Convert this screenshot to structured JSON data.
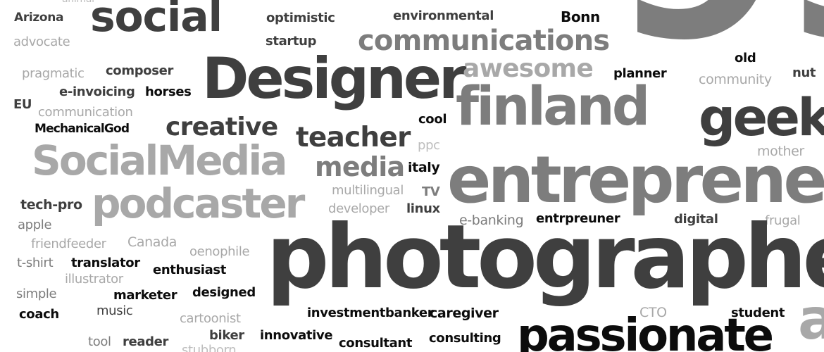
{
  "colors": {
    "black": "#0c0c0c",
    "dark": "#3f3f3f",
    "mid": "#7d7d7d",
    "light": "#a8a8a8",
    "faint": "#bdbdbd"
  },
  "words": [
    {
      "text": "animal",
      "tone": "faint"
    },
    {
      "text": "Arizona",
      "tone": "dark"
    },
    {
      "text": "advocate",
      "tone": "light"
    },
    {
      "text": "social",
      "tone": "dark"
    },
    {
      "text": "optimistic",
      "tone": "dark"
    },
    {
      "text": "startup",
      "tone": "dark"
    },
    {
      "text": "environmental",
      "tone": "dark"
    },
    {
      "text": "communications",
      "tone": "mid"
    },
    {
      "text": "Bonn",
      "tone": "black"
    },
    {
      "text": "old",
      "tone": "black"
    },
    {
      "text": "pragmatic",
      "tone": "light"
    },
    {
      "text": "composer",
      "tone": "dark"
    },
    {
      "text": "Designer",
      "tone": "dark"
    },
    {
      "text": "awesome",
      "tone": "light"
    },
    {
      "text": "planner",
      "tone": "black"
    },
    {
      "text": "community",
      "tone": "light"
    },
    {
      "text": "nut",
      "tone": "dark"
    },
    {
      "text": "e-invoicing",
      "tone": "dark"
    },
    {
      "text": "horses",
      "tone": "black"
    },
    {
      "text": "EU",
      "tone": "dark"
    },
    {
      "text": "communication",
      "tone": "light"
    },
    {
      "text": "finland",
      "tone": "mid"
    },
    {
      "text": "geek",
      "tone": "dark"
    },
    {
      "text": "cool",
      "tone": "black"
    },
    {
      "text": "MechanicalGod",
      "tone": "black"
    },
    {
      "text": "creative",
      "tone": "dark"
    },
    {
      "text": "teacher",
      "tone": "dark"
    },
    {
      "text": "ppc",
      "tone": "faint"
    },
    {
      "text": "mother",
      "tone": "light"
    },
    {
      "text": "SocialMedia",
      "tone": "light"
    },
    {
      "text": "media",
      "tone": "mid"
    },
    {
      "text": "italy",
      "tone": "black"
    },
    {
      "text": "entrepreneur",
      "tone": "mid"
    },
    {
      "text": "multilingual",
      "tone": "light"
    },
    {
      "text": "TV",
      "tone": "mid"
    },
    {
      "text": "tech-pro",
      "tone": "dark"
    },
    {
      "text": "podcaster",
      "tone": "light"
    },
    {
      "text": "developer",
      "tone": "light"
    },
    {
      "text": "linux",
      "tone": "dark"
    },
    {
      "text": "apple",
      "tone": "mid"
    },
    {
      "text": "e-banking",
      "tone": "mid"
    },
    {
      "text": "entrpreuner",
      "tone": "black"
    },
    {
      "text": "digital",
      "tone": "dark"
    },
    {
      "text": "frugal",
      "tone": "light"
    },
    {
      "text": "friendfeeder",
      "tone": "light"
    },
    {
      "text": "Canada",
      "tone": "light"
    },
    {
      "text": "oenophile",
      "tone": "light"
    },
    {
      "text": "photographer",
      "tone": "dark"
    },
    {
      "text": "t-shirt",
      "tone": "mid"
    },
    {
      "text": "translator",
      "tone": "black"
    },
    {
      "text": "illustrator",
      "tone": "light"
    },
    {
      "text": "enthusiast",
      "tone": "black"
    },
    {
      "text": "simple",
      "tone": "mid"
    },
    {
      "text": "marketer",
      "tone": "black"
    },
    {
      "text": "designed",
      "tone": "black"
    },
    {
      "text": "coach",
      "tone": "black"
    },
    {
      "text": "music",
      "tone": "dark"
    },
    {
      "text": "cartoonist",
      "tone": "light"
    },
    {
      "text": "investmentbanker",
      "tone": "black"
    },
    {
      "text": "caregiver",
      "tone": "black"
    },
    {
      "text": "CTO",
      "tone": "light"
    },
    {
      "text": "student",
      "tone": "black"
    },
    {
      "text": "tool",
      "tone": "mid"
    },
    {
      "text": "reader",
      "tone": "dark"
    },
    {
      "text": "biker",
      "tone": "dark"
    },
    {
      "text": "innovative",
      "tone": "black"
    },
    {
      "text": "consultant",
      "tone": "black"
    },
    {
      "text": "consulting",
      "tone": "black"
    },
    {
      "text": "passionate",
      "tone": "black"
    },
    {
      "text": "stubborn",
      "tone": "faint"
    },
    {
      "text": "a",
      "tone": "light"
    }
  ]
}
